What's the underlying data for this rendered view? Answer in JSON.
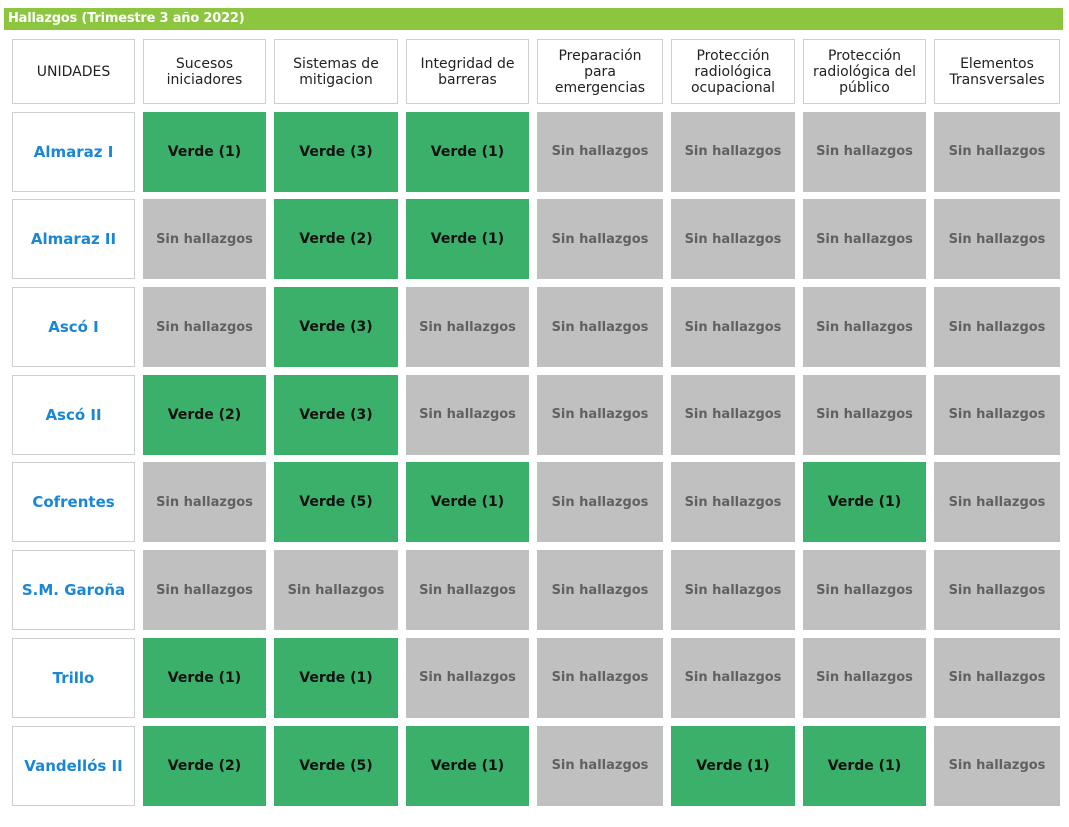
{
  "title": "Hallazgos (Trimestre 3 año 2022)",
  "colors": {
    "title_bar": "#8cc63f",
    "verde": "#3bb06a",
    "sin_hallazgos": "#c0c0c0",
    "unit_text": "#1a86d6"
  },
  "headers": {
    "units": "UNIDADES",
    "columns": [
      "Sucesos iniciadores",
      "Sistemas de mitigacion",
      "Integridad de barreras",
      "Preparación para emergencias",
      "Protección radiológica ocupacional",
      "Protección radiológica del público",
      "Elementos Transversales"
    ]
  },
  "rows": [
    {
      "unit": "Almaraz I",
      "cells": [
        "Verde (1)",
        "Verde (3)",
        "Verde (1)",
        "Sin hallazgos",
        "Sin hallazgos",
        "Sin hallazgos",
        "Sin hallazgos"
      ]
    },
    {
      "unit": "Almaraz II",
      "cells": [
        "Sin hallazgos",
        "Verde (2)",
        "Verde (1)",
        "Sin hallazgos",
        "Sin hallazgos",
        "Sin hallazgos",
        "Sin hallazgos"
      ]
    },
    {
      "unit": "Ascó I",
      "cells": [
        "Sin hallazgos",
        "Verde (3)",
        "Sin hallazgos",
        "Sin hallazgos",
        "Sin hallazgos",
        "Sin hallazgos",
        "Sin hallazgos"
      ]
    },
    {
      "unit": "Ascó II",
      "cells": [
        "Verde (2)",
        "Verde (3)",
        "Sin hallazgos",
        "Sin hallazgos",
        "Sin hallazgos",
        "Sin hallazgos",
        "Sin hallazgos"
      ]
    },
    {
      "unit": "Cofrentes",
      "cells": [
        "Sin hallazgos",
        "Verde (5)",
        "Verde (1)",
        "Sin hallazgos",
        "Sin hallazgos",
        "Verde (1)",
        "Sin hallazgos"
      ]
    },
    {
      "unit": "S.M. Garoña",
      "cells": [
        "Sin hallazgos",
        "Sin hallazgos",
        "Sin hallazgos",
        "Sin hallazgos",
        "Sin hallazgos",
        "Sin hallazgos",
        "Sin hallazgos"
      ]
    },
    {
      "unit": "Trillo",
      "cells": [
        "Verde (1)",
        "Verde (1)",
        "Sin hallazgos",
        "Sin hallazgos",
        "Sin hallazgos",
        "Sin hallazgos",
        "Sin hallazgos"
      ]
    },
    {
      "unit": "Vandellós II",
      "cells": [
        "Verde (2)",
        "Verde (5)",
        "Verde (1)",
        "Sin hallazgos",
        "Verde (1)",
        "Verde (1)",
        "Sin hallazgos"
      ]
    }
  ]
}
